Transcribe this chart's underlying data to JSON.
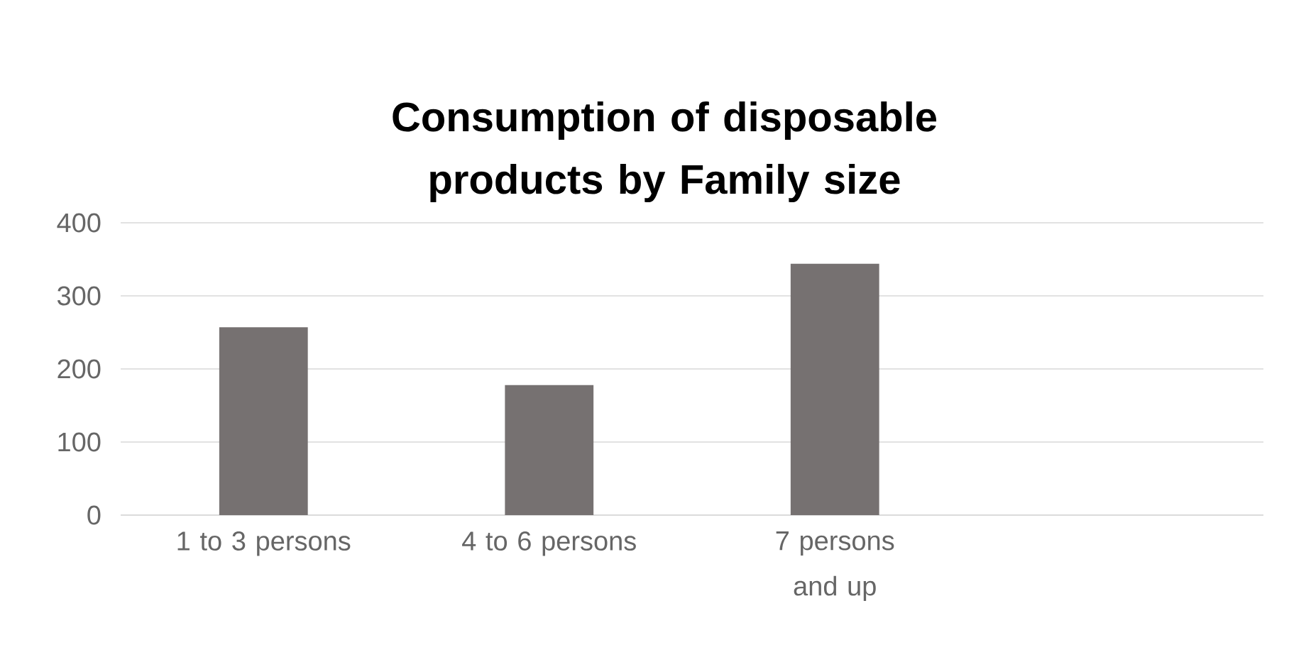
{
  "chart_data": {
    "type": "bar",
    "title": "Consumption of disposable products by Family size",
    "categories": [
      "1 to 3 persons",
      "4 to 6 persons",
      "7 persons and up",
      null
    ],
    "values": [
      257,
      178,
      344,
      null
    ],
    "color": "#767171",
    "ylim": [
      0,
      400
    ],
    "yticks": [
      0,
      100,
      200,
      300,
      400
    ],
    "grid": "y"
  }
}
